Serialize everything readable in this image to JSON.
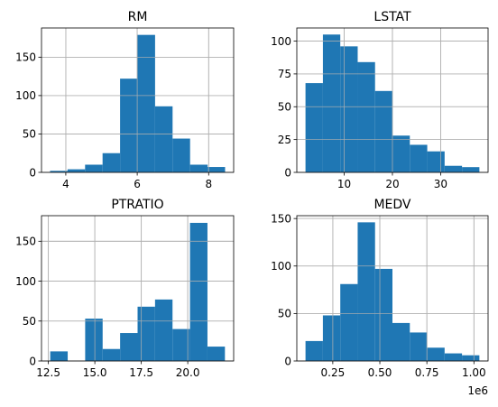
{
  "chart_data": [
    {
      "type": "bar",
      "title": "RM",
      "bin_edges": [
        3.56,
        4.05,
        4.54,
        5.03,
        5.52,
        6.01,
        6.5,
        6.99,
        7.48,
        7.97,
        8.46
      ],
      "counts": [
        2,
        4,
        10,
        25,
        122,
        179,
        86,
        44,
        10,
        7
      ],
      "xlim": [
        3.32,
        8.7
      ],
      "ylim": [
        0,
        188
      ],
      "xticks": [
        4,
        6,
        8
      ],
      "xtick_labels": [
        "4",
        "6",
        "8"
      ],
      "yticks": [
        0,
        50,
        100,
        150
      ],
      "ytick_labels": [
        "0",
        "50",
        "100",
        "150"
      ],
      "grid": true
    },
    {
      "type": "bar",
      "title": "LSTAT",
      "bin_edges": [
        1.98,
        5.59,
        9.19,
        12.8,
        16.4,
        20.01,
        23.61,
        27.22,
        30.82,
        34.43,
        38.03
      ],
      "counts": [
        68,
        105,
        96,
        84,
        62,
        28,
        21,
        16,
        5,
        4
      ],
      "xlim": [
        0.18,
        39.83
      ],
      "ylim": [
        0,
        110
      ],
      "xticks": [
        10,
        20,
        30
      ],
      "xtick_labels": [
        "10",
        "20",
        "30"
      ],
      "yticks": [
        0,
        25,
        50,
        75,
        100
      ],
      "ytick_labels": [
        "0",
        "25",
        "50",
        "75",
        "100"
      ],
      "grid": true
    },
    {
      "type": "bar",
      "title": "PTRATIO",
      "bin_edges": [
        12.6,
        13.54,
        14.48,
        15.42,
        16.36,
        17.3,
        18.24,
        19.18,
        20.12,
        21.06,
        22.0
      ],
      "counts": [
        12,
        0,
        53,
        15,
        35,
        68,
        77,
        40,
        173,
        18
      ],
      "xlim": [
        12.13,
        22.47
      ],
      "ylim": [
        0,
        182
      ],
      "xticks": [
        12.5,
        15.0,
        17.5,
        20.0
      ],
      "xtick_labels": [
        "12.5",
        "15.0",
        "17.5",
        "20.0"
      ],
      "yticks": [
        0,
        50,
        100,
        150
      ],
      "ytick_labels": [
        "0",
        "50",
        "100",
        "150"
      ],
      "grid": true
    },
    {
      "type": "bar",
      "title": "MEDV",
      "bin_edges": [
        105000,
        197400,
        289800,
        382200,
        474600,
        567000,
        659400,
        751800,
        844200,
        936600,
        1029000
      ],
      "counts": [
        21,
        48,
        81,
        146,
        97,
        40,
        30,
        14,
        8,
        6
      ],
      "xlim": [
        58800,
        1075200
      ],
      "ylim": [
        0,
        153
      ],
      "xticks": [
        250000,
        500000,
        750000,
        1000000
      ],
      "xtick_labels": [
        "0.25",
        "0.50",
        "0.75",
        "1.00"
      ],
      "yticks": [
        0,
        50,
        100,
        150
      ],
      "ytick_labels": [
        "0",
        "50",
        "100",
        "150"
      ],
      "x_offset_label": "1e6",
      "grid": true
    }
  ]
}
